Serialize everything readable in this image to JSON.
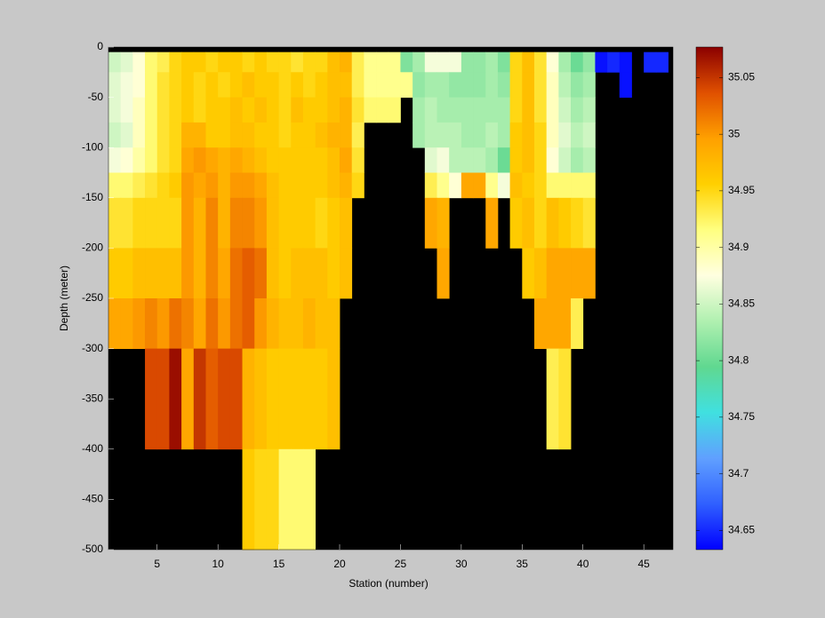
{
  "chart_data": {
    "type": "heatmap",
    "xlabel": "Station (number)",
    "ylabel": "Depth (meter)",
    "x": [
      1,
      2,
      3,
      4,
      5,
      6,
      7,
      8,
      9,
      10,
      11,
      12,
      13,
      14,
      15,
      16,
      17,
      18,
      19,
      20,
      21,
      22,
      23,
      24,
      25,
      26,
      27,
      28,
      29,
      30,
      31,
      32,
      33,
      34,
      35,
      36,
      37,
      38,
      39,
      40,
      41,
      42,
      43,
      44,
      45,
      46,
      47
    ],
    "y": [
      -5,
      -25,
      -50,
      -75,
      -100,
      -125,
      -150,
      -200,
      -250,
      -300,
      -400,
      -500
    ],
    "z": [
      [
        34.85,
        34.86,
        34.88,
        34.92,
        34.93,
        34.95,
        34.96,
        34.96,
        34.95,
        34.96,
        34.96,
        34.95,
        34.96,
        34.95,
        34.95,
        34.94,
        34.95,
        34.95,
        34.97,
        34.98,
        34.93,
        34.91,
        34.91,
        34.91,
        34.81,
        34.83,
        34.87,
        34.87,
        34.87,
        34.82,
        34.82,
        34.83,
        34.81,
        34.95,
        34.97,
        34.94,
        34.88,
        34.83,
        34.8,
        34.82,
        34.64,
        34.65,
        34.64,
        null,
        34.65,
        34.65
      ],
      [
        34.86,
        34.87,
        34.88,
        34.92,
        34.94,
        34.95,
        34.96,
        34.95,
        34.96,
        34.95,
        34.96,
        34.97,
        34.96,
        34.96,
        34.95,
        34.96,
        34.95,
        34.96,
        34.97,
        34.97,
        34.93,
        34.91,
        34.91,
        34.91,
        34.91,
        34.82,
        34.83,
        34.83,
        34.82,
        34.82,
        34.82,
        34.83,
        34.82,
        34.95,
        34.97,
        34.94,
        34.89,
        34.84,
        34.82,
        34.83,
        null,
        null,
        34.64,
        null,
        null,
        null
      ],
      [
        34.86,
        34.87,
        34.89,
        34.92,
        34.94,
        34.95,
        34.96,
        34.95,
        34.96,
        34.96,
        34.97,
        34.96,
        34.97,
        34.96,
        34.95,
        34.97,
        34.96,
        34.96,
        34.97,
        34.98,
        34.94,
        34.92,
        34.92,
        34.92,
        null,
        34.83,
        34.84,
        34.83,
        34.83,
        34.83,
        34.83,
        34.83,
        34.83,
        34.95,
        34.97,
        34.94,
        34.89,
        34.85,
        34.83,
        34.84,
        null,
        null,
        null,
        null,
        null,
        null
      ],
      [
        34.85,
        34.86,
        34.89,
        34.92,
        34.94,
        34.95,
        34.98,
        34.98,
        34.96,
        34.96,
        34.97,
        34.97,
        34.96,
        34.96,
        34.95,
        34.96,
        34.96,
        34.97,
        34.98,
        34.98,
        34.93,
        null,
        null,
        null,
        null,
        34.83,
        34.84,
        34.84,
        34.84,
        34.83,
        34.83,
        34.84,
        34.83,
        34.96,
        34.97,
        34.95,
        34.89,
        34.86,
        34.84,
        34.85,
        null,
        null,
        null,
        null,
        null,
        null
      ],
      [
        34.87,
        34.88,
        34.9,
        34.92,
        34.94,
        34.95,
        34.99,
        35,
        34.99,
        34.98,
        34.99,
        34.98,
        34.97,
        34.96,
        34.96,
        34.96,
        34.96,
        34.96,
        34.97,
        34.99,
        34.94,
        null,
        null,
        null,
        null,
        null,
        34.86,
        34.87,
        34.84,
        34.84,
        34.84,
        34.83,
        34.8,
        34.96,
        34.97,
        34.95,
        34.88,
        34.85,
        34.83,
        34.84,
        null,
        null,
        null,
        null,
        null,
        null
      ],
      [
        34.92,
        34.92,
        34.93,
        34.94,
        34.95,
        34.96,
        35,
        34.99,
        35,
        34.98,
        35,
        35,
        34.99,
        34.97,
        34.96,
        34.96,
        34.96,
        34.96,
        34.97,
        34.98,
        34.95,
        null,
        null,
        null,
        null,
        null,
        34.93,
        34.91,
        34.88,
        34.99,
        34.99,
        34.91,
        34.87,
        34.97,
        34.96,
        34.95,
        34.92,
        34.92,
        34.92,
        34.92,
        null,
        null,
        null,
        null,
        null,
        null
      ],
      [
        34.94,
        34.94,
        34.95,
        34.95,
        34.95,
        34.95,
        35,
        34.98,
        35.01,
        34.98,
        35.01,
        35.01,
        35,
        34.97,
        34.96,
        34.96,
        34.96,
        34.95,
        34.96,
        34.97,
        null,
        null,
        null,
        null,
        null,
        null,
        34.99,
        34.98,
        null,
        null,
        null,
        34.99,
        null,
        34.96,
        34.97,
        34.95,
        34.97,
        34.96,
        34.95,
        34.94,
        null,
        null,
        null,
        null,
        null,
        null
      ],
      [
        34.96,
        34.96,
        34.97,
        34.97,
        34.97,
        34.97,
        35,
        34.98,
        35.01,
        34.99,
        35.02,
        35.03,
        35.02,
        34.97,
        34.96,
        34.97,
        34.97,
        34.97,
        34.96,
        34.97,
        null,
        null,
        null,
        null,
        null,
        null,
        null,
        34.99,
        null,
        null,
        null,
        null,
        null,
        null,
        34.96,
        34.97,
        34.99,
        34.99,
        34.99,
        34.99,
        null,
        null,
        null,
        null,
        null,
        null
      ],
      [
        34.99,
        34.99,
        35,
        35.01,
        35,
        35.02,
        35.01,
        34.99,
        35.02,
        35,
        35.02,
        35.03,
        35,
        34.98,
        34.97,
        34.97,
        34.98,
        34.97,
        34.97,
        null,
        null,
        null,
        null,
        null,
        null,
        null,
        null,
        null,
        null,
        null,
        null,
        null,
        null,
        null,
        null,
        34.99,
        34.99,
        34.99,
        34.93,
        null,
        null,
        null,
        null,
        null,
        null,
        null
      ],
      [
        null,
        null,
        null,
        35.04,
        35.04,
        35.07,
        34.99,
        35.05,
        35.03,
        35.04,
        35.04,
        34.98,
        34.97,
        34.96,
        34.96,
        34.96,
        34.96,
        34.96,
        34.97,
        null,
        null,
        null,
        null,
        null,
        null,
        null,
        null,
        null,
        null,
        null,
        null,
        null,
        null,
        null,
        null,
        null,
        34.93,
        34.94,
        null,
        null,
        null,
        null,
        null,
        null,
        null,
        null
      ],
      [
        null,
        null,
        null,
        null,
        null,
        null,
        null,
        null,
        null,
        null,
        null,
        34.96,
        34.95,
        34.95,
        34.92,
        34.92,
        34.92,
        null,
        null,
        null,
        null,
        null,
        null,
        null,
        null,
        null,
        null,
        null,
        null,
        null,
        null,
        null,
        null,
        null,
        null,
        null,
        null,
        null,
        null,
        null,
        null,
        null,
        null,
        null,
        null,
        null
      ]
    ],
    "xlim": [
      1,
      47.4
    ],
    "ylim": [
      -500,
      0
    ],
    "xticks": [
      5,
      10,
      15,
      20,
      25,
      30,
      35,
      40,
      45
    ],
    "yticks": [
      -500,
      -450,
      -400,
      -350,
      -300,
      -250,
      -200,
      -150,
      -100,
      -50,
      0
    ],
    "clim": [
      34.633,
      35.077
    ],
    "cticks": [
      34.65,
      34.7,
      34.75,
      34.8,
      34.85,
      34.9,
      34.95,
      35,
      35.05
    ],
    "colormap": [
      "#0000ff",
      "#3060ff",
      "#60a0ff",
      "#40e0e0",
      "#60d890",
      "#b0f0b0",
      "#ffffe0",
      "#ffff80",
      "#ffd000",
      "#ffa000",
      "#e05000",
      "#8b0000"
    ],
    "missing_color": "#000000"
  }
}
